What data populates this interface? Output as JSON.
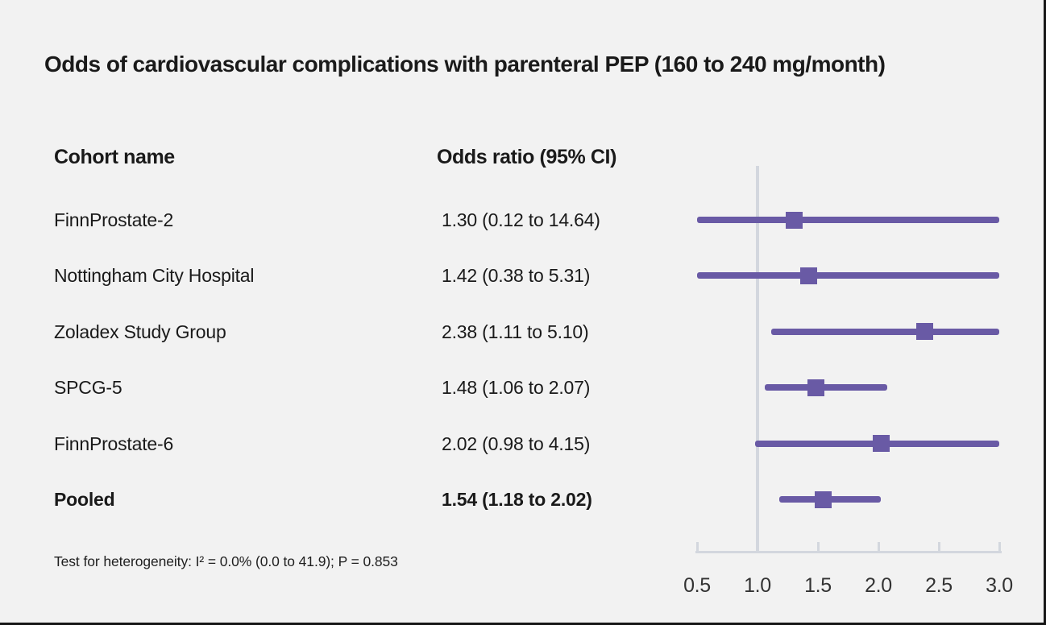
{
  "title": "Odds of cardiovascular complications with parenteral PEP (160 to 240 mg/month)",
  "table": {
    "cohort_header": "Cohort name",
    "or_header": "Odds ratio (95% CI)"
  },
  "footnote": "Test for heterogeneity: I² = 0.0% (0.0 to 41.9); P = 0.853",
  "colors": {
    "background": "#f2f2f2",
    "text": "#1a1a1a",
    "marker": "#695aa5",
    "axis_line": "#d3d7de",
    "tick_text": "#333333"
  },
  "chart_data": {
    "type": "forest",
    "title": "Odds of cardiovascular complications with parenteral PEP (160 to 240 mg/month)",
    "rows": [
      {
        "label": "FinnProstate-2",
        "display": "1.30 (0.12 to 14.64)",
        "estimate": 1.3,
        "ci_low": 0.12,
        "ci_high": 14.64,
        "pooled": false
      },
      {
        "label": "Nottingham City Hospital",
        "display": "1.42 (0.38 to 5.31)",
        "estimate": 1.42,
        "ci_low": 0.38,
        "ci_high": 5.31,
        "pooled": false
      },
      {
        "label": "Zoladex Study Group",
        "display": "2.38 (1.11 to 5.10)",
        "estimate": 2.38,
        "ci_low": 1.11,
        "ci_high": 5.1,
        "pooled": false
      },
      {
        "label": "SPCG-5",
        "display": "1.48 (1.06 to 2.07)",
        "estimate": 1.48,
        "ci_low": 1.06,
        "ci_high": 2.07,
        "pooled": false
      },
      {
        "label": "FinnProstate-6",
        "display": "2.02 (0.98 to 4.15)",
        "estimate": 2.02,
        "ci_low": 0.98,
        "ci_high": 4.15,
        "pooled": false
      },
      {
        "label": "Pooled",
        "display": "1.54 (1.18 to 2.02)",
        "estimate": 1.54,
        "ci_low": 1.18,
        "ci_high": 2.02,
        "pooled": true
      }
    ],
    "x_axis": {
      "min": 0.5,
      "max": 3.0,
      "tick_values": [
        0.5,
        1.0,
        1.5,
        2.0,
        2.5,
        3.0
      ],
      "ticks": [
        "0.5",
        "1.0",
        "1.5",
        "2.0",
        "2.5",
        "3.0"
      ],
      "reference_line": 1.0,
      "scale": "linear",
      "clipped_to_range": true
    },
    "heterogeneity": {
      "I2_percent": 0.0,
      "I2_ci": [
        0.0,
        41.9
      ],
      "P": 0.853
    }
  }
}
